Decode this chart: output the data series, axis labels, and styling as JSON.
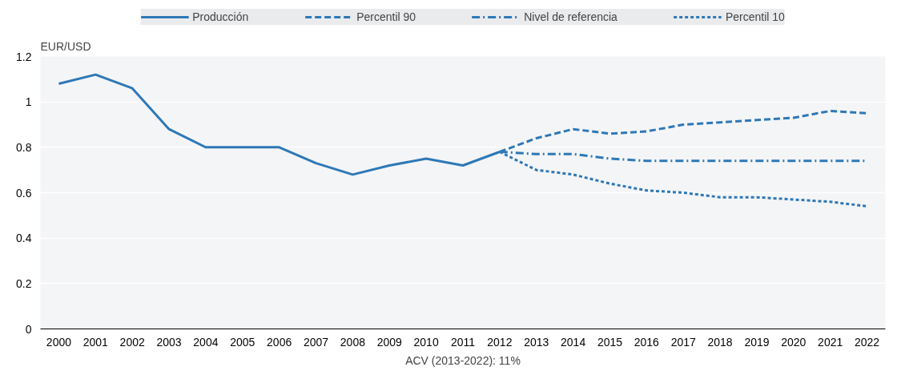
{
  "chart_data": {
    "type": "line",
    "ylabel": "EUR/USD",
    "categories": [
      "2000",
      "2001",
      "2002",
      "2003",
      "2004",
      "2005",
      "2006",
      "2007",
      "2008",
      "2009",
      "2010",
      "2011",
      "2012",
      "2013",
      "2014",
      "2015",
      "2016",
      "2017",
      "2018",
      "2019",
      "2020",
      "2021",
      "2022"
    ],
    "series": [
      {
        "name": "Producción",
        "color": "#2e78b6",
        "line_style": "solid",
        "values": [
          1.08,
          1.12,
          1.06,
          0.88,
          0.8,
          0.8,
          0.8,
          0.73,
          0.68,
          0.72,
          0.75,
          0.72,
          0.78,
          null,
          null,
          null,
          null,
          null,
          null,
          null,
          null,
          null,
          null
        ]
      },
      {
        "name": "Percentil 90",
        "color": "#2e78b6",
        "line_style": "dashed",
        "values": [
          null,
          null,
          null,
          null,
          null,
          null,
          null,
          null,
          null,
          null,
          null,
          null,
          0.78,
          0.84,
          0.88,
          0.86,
          0.87,
          0.9,
          0.91,
          0.92,
          0.93,
          0.96,
          0.95
        ]
      },
      {
        "name": "Nivel de referencia",
        "color": "#2e78b6",
        "line_style": "dashdot",
        "values": [
          null,
          null,
          null,
          null,
          null,
          null,
          null,
          null,
          null,
          null,
          null,
          null,
          0.78,
          0.77,
          0.77,
          0.75,
          0.74,
          0.74,
          0.74,
          0.74,
          0.74,
          0.74,
          0.74
        ]
      },
      {
        "name": "Percentil 10",
        "color": "#2e78b6",
        "line_style": "dotted",
        "values": [
          null,
          null,
          null,
          null,
          null,
          null,
          null,
          null,
          null,
          null,
          null,
          null,
          0.78,
          0.7,
          0.68,
          0.64,
          0.61,
          0.6,
          0.58,
          0.58,
          0.57,
          0.56,
          0.54
        ]
      }
    ],
    "ylim": [
      0,
      1.2
    ],
    "yticks": [
      0,
      0.2,
      0.4,
      0.6,
      0.8,
      1,
      1.2
    ],
    "grid": "y",
    "legend": "top",
    "marker": "none",
    "annotations": [
      "ACV (2013-2022): 11%"
    ]
  }
}
